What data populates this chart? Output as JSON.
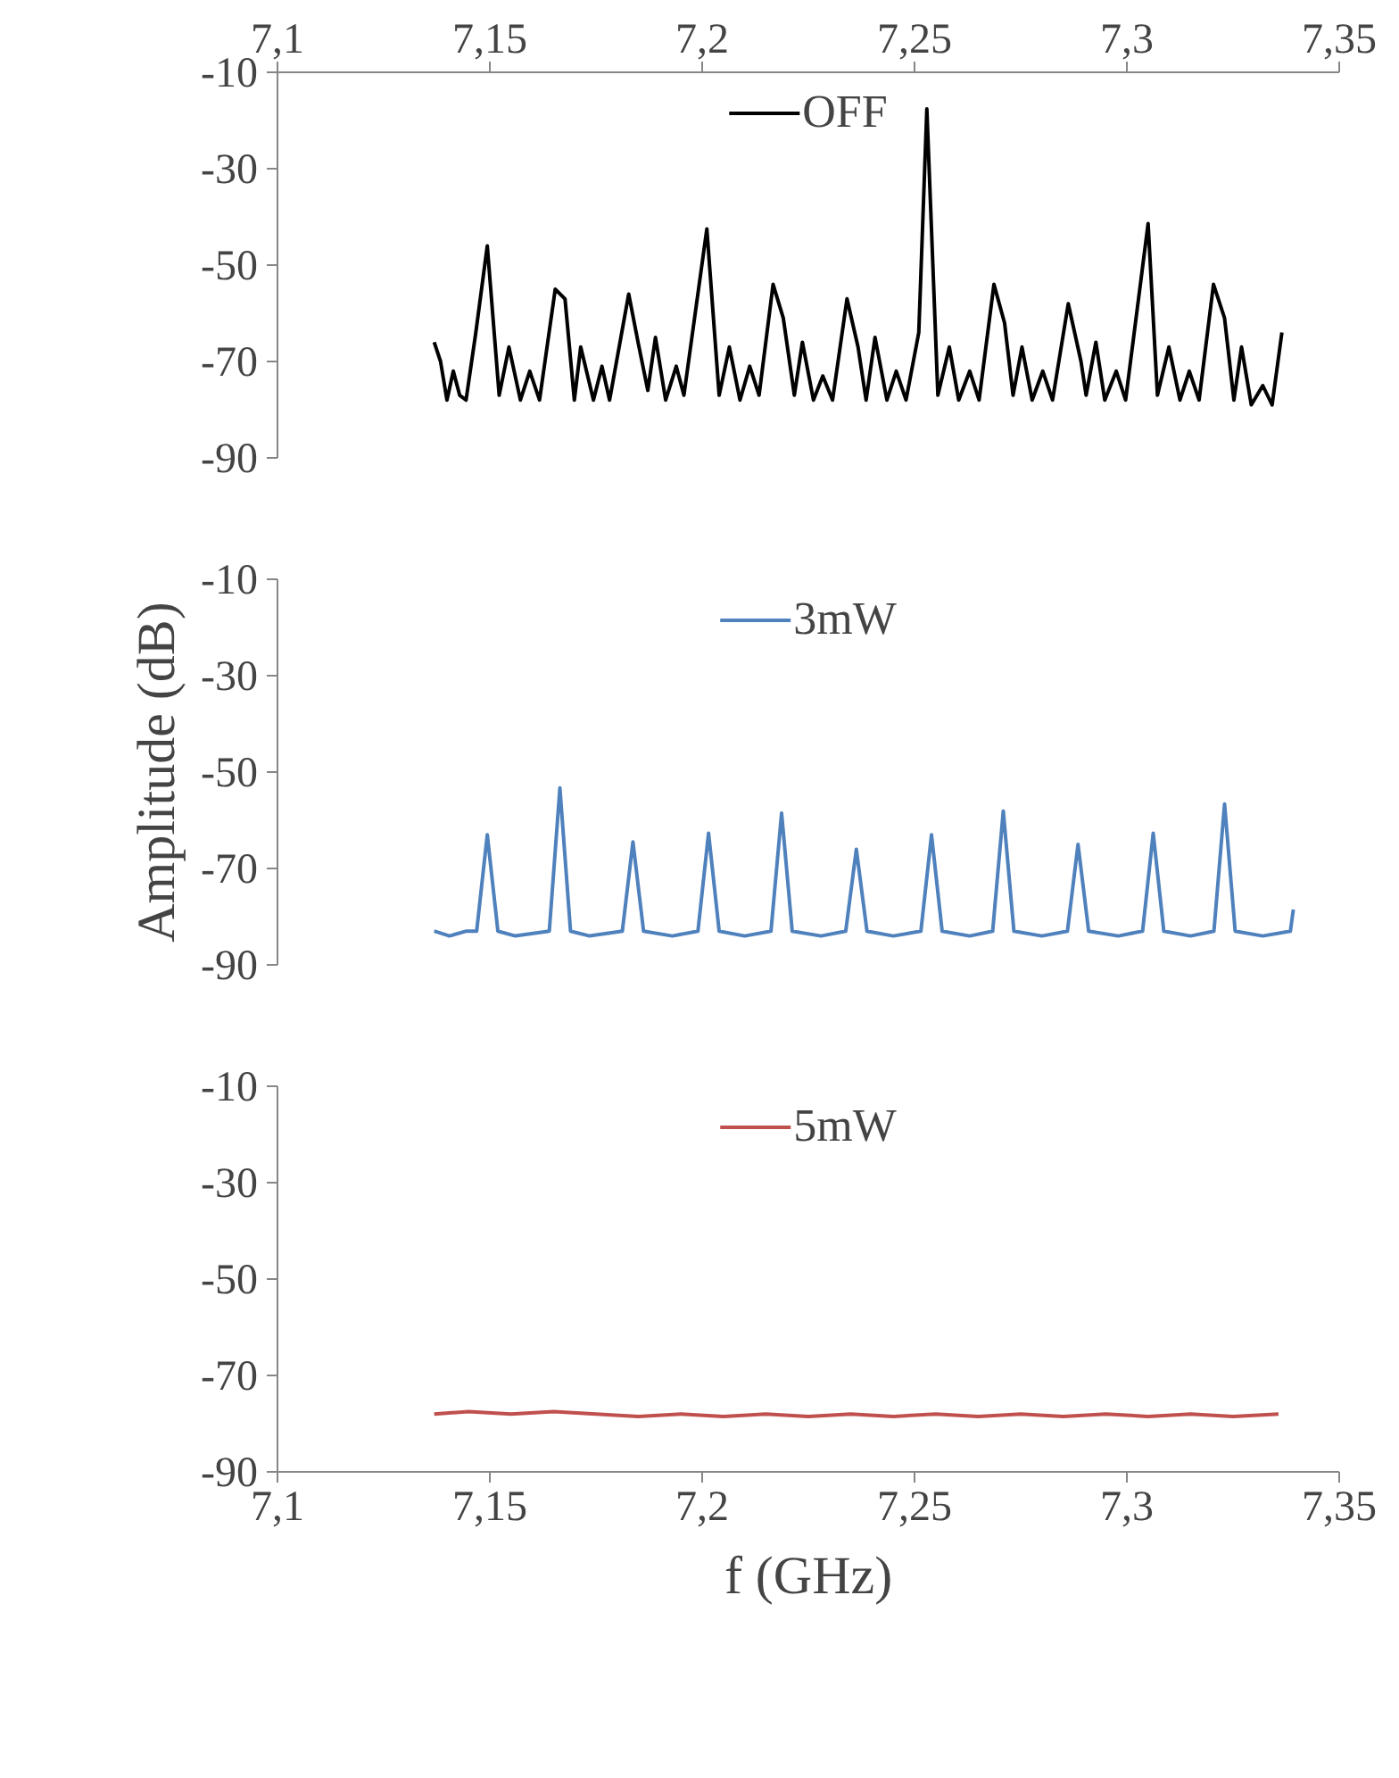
{
  "chart_data": [
    {
      "type": "line",
      "legend": "top",
      "tick_labels": "y",
      "line_style": "solid",
      "xlim": [
        7.1,
        7.35
      ],
      "x2lim": [
        7.1,
        7.35
      ],
      "x2ticks": [
        {
          "value": 7.1,
          "label": "7,1"
        },
        {
          "value": 7.15,
          "label": "7,15"
        },
        {
          "value": 7.2,
          "label": "7,2"
        },
        {
          "value": 7.25,
          "label": "7,25"
        },
        {
          "value": 7.3,
          "label": "7,3"
        },
        {
          "value": 7.35,
          "label": "7,35"
        }
      ],
      "ylim": [
        -90,
        -10
      ],
      "yticks": [
        -90,
        -70,
        -50,
        -30,
        -10
      ],
      "series": [
        {
          "name": "OFF",
          "color": "#000000",
          "x": [
            7.1369,
            7.1384,
            7.1399,
            7.1414,
            7.1429,
            7.1444,
            7.1467,
            7.1494,
            7.1522,
            7.1545,
            7.1572,
            7.1594,
            7.1617,
            7.1654,
            7.1677,
            7.1699,
            7.1714,
            7.1744,
            7.1764,
            7.1782,
            7.1827,
            7.1849,
            7.1872,
            7.189,
            7.1914,
            7.1939,
            7.1957,
            7.2011,
            7.204,
            7.2064,
            7.2089,
            7.2112,
            7.2134,
            7.2167,
            7.2191,
            7.2217,
            7.2236,
            7.2262,
            7.2284,
            7.2307,
            7.2341,
            7.2367,
            7.2386,
            7.2407,
            7.2435,
            7.2457,
            7.248,
            7.251,
            7.2529,
            7.2555,
            7.2582,
            7.2604,
            7.263,
            7.2652,
            7.2687,
            7.2712,
            7.2732,
            7.2753,
            7.2777,
            7.2802,
            7.2825,
            7.2862,
            7.2892,
            7.2904,
            7.2927,
            7.2948,
            7.2975,
            7.2997,
            7.305,
            7.3072,
            7.3099,
            7.3125,
            7.3147,
            7.317,
            7.3204,
            7.323,
            7.3252,
            7.327,
            7.3293,
            7.332,
            7.3342,
            7.3365
          ],
          "values": [
            -66,
            -70,
            -78,
            -72,
            -77,
            -78,
            -64,
            -46,
            -77,
            -67,
            -78,
            -72,
            -78,
            -55,
            -57,
            -78,
            -67,
            -78,
            -71,
            -78,
            -56,
            -66,
            -76,
            -65,
            -78,
            -71,
            -77,
            -42.5,
            -77,
            -67,
            -78,
            -71,
            -77,
            -54,
            -61,
            -77,
            -66,
            -78,
            -73,
            -78,
            -57,
            -67,
            -78,
            -65,
            -78,
            -72,
            -78,
            -64,
            -17.6,
            -77,
            -67,
            -78,
            -72,
            -78,
            -54,
            -62,
            -77,
            -67,
            -78,
            -72,
            -78,
            -58,
            -70,
            -77,
            -66,
            -78,
            -72,
            -78,
            -41.4,
            -77,
            -67,
            -78,
            -72,
            -78,
            -54,
            -61,
            -78,
            -67,
            -79,
            -75,
            -79,
            -64
          ]
        }
      ]
    },
    {
      "type": "line",
      "legend": "top",
      "tick_labels": "y",
      "line_style": "solid",
      "xlim": [
        7.1,
        7.35
      ],
      "ylim": [
        -90,
        -10
      ],
      "yticks": [
        -90,
        -70,
        -50,
        -30,
        -10
      ],
      "ylabel": "Amplitude (dB)",
      "series": [
        {
          "name": "3mW",
          "color": "#4f81bd",
          "x": [
            7.1369,
            7.1405,
            7.1445,
            7.1469,
            7.1494,
            7.1519,
            7.156,
            7.164,
            7.1665,
            7.169,
            7.1735,
            7.1812,
            7.1837,
            7.1862,
            7.193,
            7.199,
            7.2015,
            7.204,
            7.21,
            7.2162,
            7.2187,
            7.2212,
            7.228,
            7.2338,
            7.2363,
            7.2388,
            7.245,
            7.2515,
            7.254,
            7.2565,
            7.263,
            7.2684,
            7.2709,
            7.2734,
            7.28,
            7.286,
            7.2885,
            7.291,
            7.298,
            7.3037,
            7.3062,
            7.3087,
            7.315,
            7.3205,
            7.323,
            7.3255,
            7.332,
            7.3385,
            7.3392
          ],
          "values": [
            -83,
            -84,
            -83,
            -83,
            -63,
            -83,
            -84,
            -83,
            -53.3,
            -83,
            -84,
            -83,
            -64.5,
            -83,
            -84,
            -83,
            -62.7,
            -83,
            -84,
            -83,
            -58.5,
            -83,
            -84,
            -83,
            -66,
            -83,
            -84,
            -83,
            -63,
            -83,
            -84,
            -83,
            -58.1,
            -83,
            -84,
            -83,
            -65,
            -83,
            -84,
            -83,
            -62.7,
            -83,
            -84,
            -83,
            -56.6,
            -83,
            -84,
            -83,
            -78.5
          ]
        }
      ]
    },
    {
      "type": "line",
      "legend": "top",
      "line_style": "solid",
      "xlim": [
        7.1,
        7.35
      ],
      "xticks": [
        {
          "value": 7.1,
          "label": "7,1"
        },
        {
          "value": 7.15,
          "label": "7,15"
        },
        {
          "value": 7.2,
          "label": "7,2"
        },
        {
          "value": 7.25,
          "label": "7,25"
        },
        {
          "value": 7.3,
          "label": "7,3"
        },
        {
          "value": 7.35,
          "label": "7,35"
        }
      ],
      "ylim": [
        -90,
        -10
      ],
      "yticks": [
        -90,
        -70,
        -50,
        -30,
        -10
      ],
      "xlabel": "f (GHz)",
      "series": [
        {
          "name": "5mW",
          "color": "#c0504d",
          "x": [
            7.1369,
            7.145,
            7.155,
            7.165,
            7.175,
            7.185,
            7.195,
            7.205,
            7.215,
            7.225,
            7.235,
            7.245,
            7.255,
            7.265,
            7.275,
            7.285,
            7.295,
            7.305,
            7.315,
            7.325,
            7.3357
          ],
          "values": [
            -78,
            -77.5,
            -78,
            -77.5,
            -78,
            -78.5,
            -78,
            -78.5,
            -78,
            -78.5,
            -78,
            -78.5,
            -78,
            -78.5,
            -78,
            -78.5,
            -78,
            -78.5,
            -78,
            -78.5,
            -78
          ]
        }
      ]
    }
  ]
}
